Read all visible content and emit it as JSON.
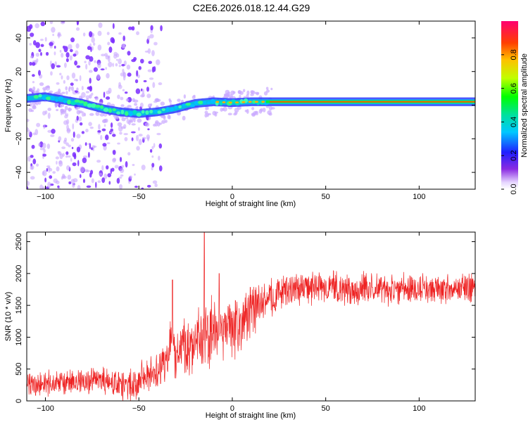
{
  "figure_title": "C2E6.2026.018.12.44.G29",
  "colors": {
    "snr_line": "#ee2222",
    "trend_core": "#ff5a00",
    "scatter_main": "#7a2cff",
    "scatter_light": "#c9a8ff"
  },
  "chart_data": [
    {
      "type": "heatmap",
      "title": "",
      "xlabel": "Height of straight line (km)",
      "ylabel": "Frequency (Hz)",
      "xlim": [
        -110,
        130
      ],
      "ylim": [
        -50,
        50
      ],
      "x_ticks": [
        -100,
        -50,
        0,
        50,
        100
      ],
      "y_ticks": [
        -40,
        -20,
        0,
        20,
        40
      ],
      "grid": false,
      "colorbar": {
        "label": "Normalized spectral amplitude",
        "range": [
          0,
          1
        ],
        "ticks": [
          0.0,
          0.2,
          0.4,
          0.6,
          0.8
        ],
        "colormap": "rainbow"
      },
      "trend": {
        "x": [
          -110,
          -100,
          -90,
          -80,
          -70,
          -60,
          -50,
          -40,
          -30,
          -20,
          -10,
          0,
          10,
          20,
          30,
          50,
          80,
          100,
          130
        ],
        "y": [
          4,
          5,
          3,
          1,
          -2,
          -4,
          -5,
          -4,
          -2,
          1,
          2,
          1.5,
          2,
          2,
          2,
          2,
          2,
          2,
          2
        ]
      },
      "noise_region_xlim": [
        -110,
        -38
      ]
    },
    {
      "type": "line",
      "title": "",
      "xlabel": "Height of straight line (km)",
      "ylabel": "SNR (10 * v/v)",
      "xlim": [
        -110,
        130
      ],
      "ylim": [
        0,
        2650
      ],
      "x_ticks": [
        -100,
        -50,
        0,
        50,
        100
      ],
      "y_ticks": [
        0,
        500,
        1000,
        1500,
        2000,
        2500
      ],
      "grid": false,
      "series": [
        {
          "x": [
            -110,
            -100,
            -90,
            -80,
            -70,
            -60,
            -55,
            -50,
            -45,
            -40,
            -35,
            -33,
            -30,
            -25,
            -20,
            -15,
            -10,
            -5,
            0,
            5,
            10,
            15,
            20,
            25,
            30,
            40,
            50,
            60,
            70,
            80,
            90,
            100,
            110,
            120,
            130
          ],
          "values": [
            250,
            260,
            280,
            300,
            320,
            230,
            230,
            350,
            420,
            480,
            600,
            900,
            780,
            850,
            950,
            1000,
            1050,
            1100,
            1150,
            1250,
            1400,
            1500,
            1600,
            1700,
            1750,
            1770,
            1780,
            1750,
            1760,
            1750,
            1770,
            1760,
            1770,
            1770,
            1780
          ]
        }
      ],
      "spikes": [
        {
          "x": -32,
          "y": 1900
        },
        {
          "x": -15,
          "y": 2650
        },
        {
          "x": -7,
          "y": 2000
        }
      ],
      "noise_amplitude": [
        {
          "x": -110,
          "a": 180
        },
        {
          "x": -40,
          "a": 260
        },
        {
          "x": -30,
          "a": 450
        },
        {
          "x": -10,
          "a": 550
        },
        {
          "x": 10,
          "a": 400
        },
        {
          "x": 25,
          "a": 260
        },
        {
          "x": 130,
          "a": 230
        }
      ]
    }
  ]
}
